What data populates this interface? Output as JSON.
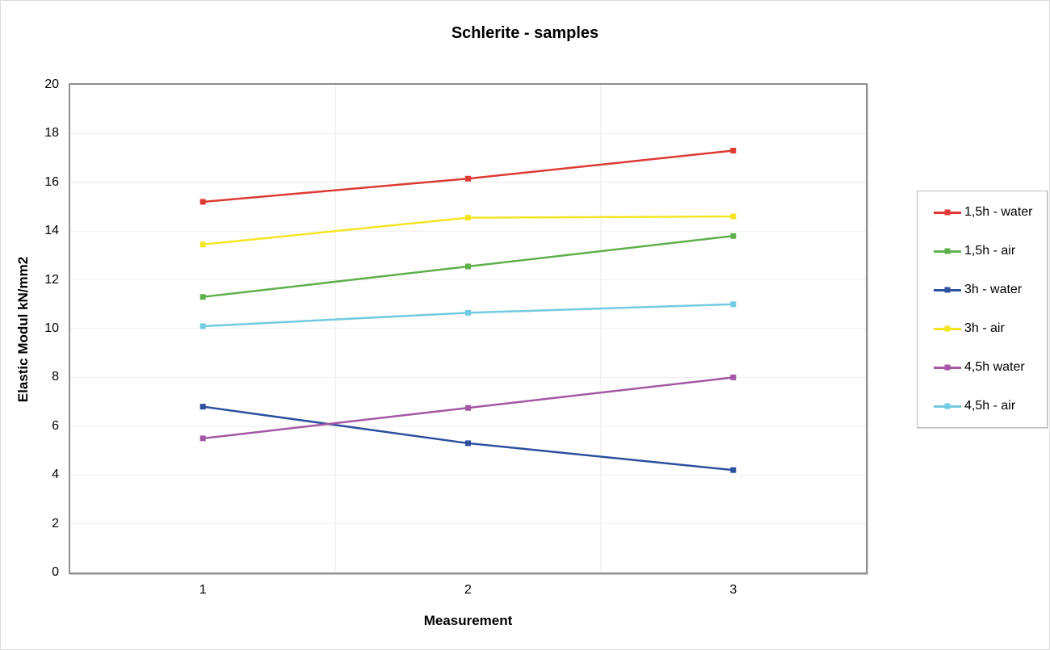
{
  "chart_data": {
    "type": "line",
    "title": "Schlerite - samples",
    "xlabel": "Measurement",
    "ylabel": "Elastic Modul kN/mm2",
    "categories": [
      "1",
      "2",
      "3"
    ],
    "ylim": [
      0,
      20
    ],
    "yticks": [
      0,
      2,
      4,
      6,
      8,
      10,
      12,
      14,
      16,
      18,
      20
    ],
    "grid": {
      "horizontal": true,
      "vertical_band_boundaries": true,
      "color": "#eeeeee"
    },
    "legend_position": "right",
    "marker": "square",
    "series": [
      {
        "name": "1,5h - water",
        "color": "#dc3a33",
        "values": [
          15.2,
          16.15,
          17.3
        ]
      },
      {
        "name": "1,5h - air",
        "color": "#5fb04c",
        "values": [
          11.3,
          12.55,
          13.8
        ]
      },
      {
        "name": "3h - water",
        "color": "#2c4f9e",
        "values": [
          6.8,
          5.3,
          4.2
        ]
      },
      {
        "name": "3h - air",
        "color": "#f3e524",
        "values": [
          13.45,
          14.55,
          14.6
        ]
      },
      {
        "name": "4,5h water",
        "color": "#a457a3",
        "values": [
          5.5,
          6.75,
          8.0
        ]
      },
      {
        "name": "4,5h - air",
        "color": "#72cbe1",
        "values": [
          10.1,
          10.65,
          11.0
        ]
      }
    ]
  },
  "colors": {
    "plot_border": "#8f8f8f",
    "legend_border": "#b8b8b8",
    "gridline": "#eeeeee",
    "text": "#000000",
    "background": "#ffffff"
  }
}
